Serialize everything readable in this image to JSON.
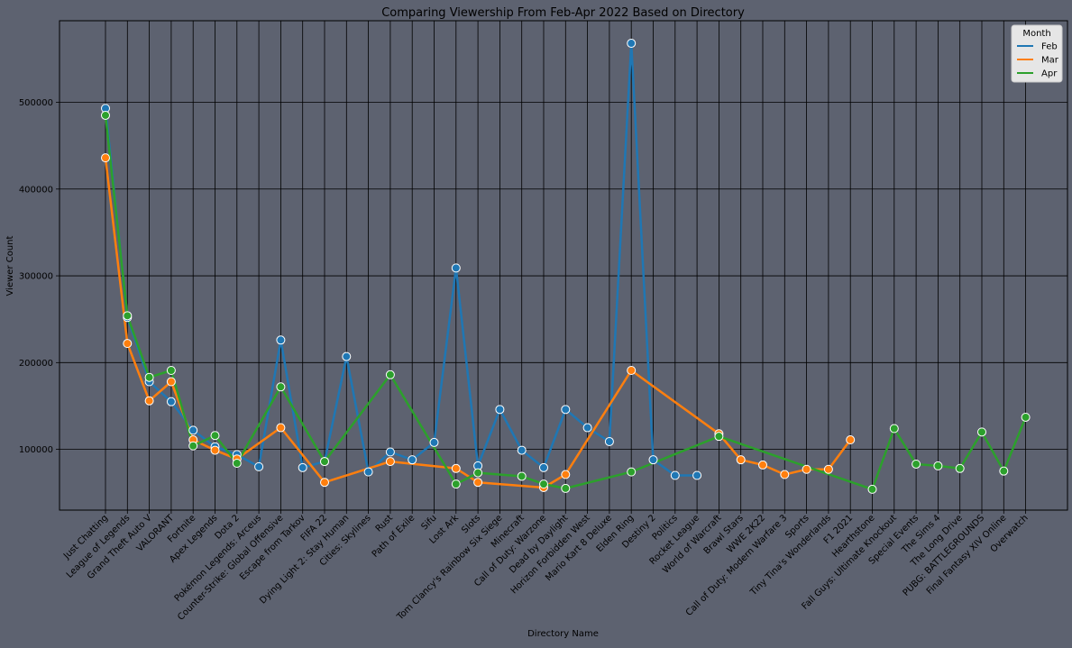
{
  "chart_data": {
    "type": "line",
    "title": "Comparing Viewership From Feb-Apr 2022 Based on Directory",
    "xlabel": "Directory Name",
    "ylabel": "Viewer Count",
    "ylim": [
      30000,
      594000
    ],
    "yticks": [
      100000,
      200000,
      300000,
      400000,
      500000
    ],
    "ytick_labels": [
      "100000",
      "200000",
      "300000",
      "400000",
      "500000"
    ],
    "grid": true,
    "legend": {
      "title": "Month",
      "position": "top-right"
    },
    "categories": [
      "Just Chatting",
      "League of Legends",
      "Grand Theft Auto V",
      "VALORANT",
      "Fortnite",
      "Apex Legends",
      "Dota 2",
      "Pokémon Legends: Arceus",
      "Counter-Strike: Global Offensive",
      "Escape from Tarkov",
      "FIFA 22",
      "Dying Light 2: Stay Human",
      "Cities: Skylines",
      "Rust",
      "Path of Exile",
      "Sifu",
      "Lost Ark",
      "Slots",
      "Tom Clancy's Rainbow Six Siege",
      "Minecraft",
      "Call of Duty: Warzone",
      "Dead by Daylight",
      "Horizon Forbidden West",
      "Mario Kart 8 Deluxe",
      "Elden Ring",
      "Destiny 2",
      "Politics",
      "Rocket League",
      "World of Warcraft",
      "Brawl Stars",
      "WWE 2K22",
      "Call of Duty: Modern Warfare 3",
      "Sports",
      "Tiny Tina's Wonderlands",
      "F1 2021",
      "Hearthstone",
      "Fall Guys: Ultimate Knockout",
      "Special Events",
      "The Sims 4",
      "The Long Drive",
      "PUBG: BATTLEGROUNDS",
      "Final Fantasy XIV Online",
      "Overwatch"
    ],
    "series": [
      {
        "name": "Feb",
        "color": "#1f77b4",
        "values": [
          493000,
          252000,
          178000,
          155000,
          122000,
          103000,
          94000,
          80000,
          226000,
          79000,
          86000,
          207000,
          74000,
          97000,
          88000,
          108000,
          309000,
          81000,
          146000,
          99000,
          79000,
          146000,
          125000,
          109000,
          568000,
          88000,
          70000,
          70000,
          null,
          null,
          null,
          null,
          null,
          null,
          null,
          null,
          null,
          null,
          null,
          null,
          null,
          null,
          null
        ]
      },
      {
        "name": "Mar",
        "color": "#ff7f0e",
        "values": [
          436000,
          222000,
          156000,
          178000,
          111000,
          99000,
          89000,
          null,
          125000,
          null,
          62000,
          null,
          null,
          86000,
          null,
          null,
          78000,
          62000,
          null,
          null,
          56000,
          71000,
          null,
          null,
          191000,
          null,
          null,
          null,
          118000,
          88000,
          82000,
          71000,
          77000,
          77000,
          111000,
          null,
          null,
          null,
          null,
          null,
          null,
          null,
          null
        ]
      },
      {
        "name": "Apr",
        "color": "#2ca02c",
        "values": [
          485000,
          254000,
          183000,
          191000,
          104000,
          116000,
          84000,
          null,
          172000,
          null,
          86000,
          null,
          null,
          186000,
          null,
          null,
          60000,
          73000,
          null,
          69000,
          60000,
          55000,
          null,
          null,
          74000,
          null,
          null,
          null,
          115000,
          null,
          null,
          null,
          null,
          null,
          null,
          54000,
          124000,
          83000,
          81000,
          78000,
          120000,
          75000,
          137000
        ]
      }
    ]
  }
}
